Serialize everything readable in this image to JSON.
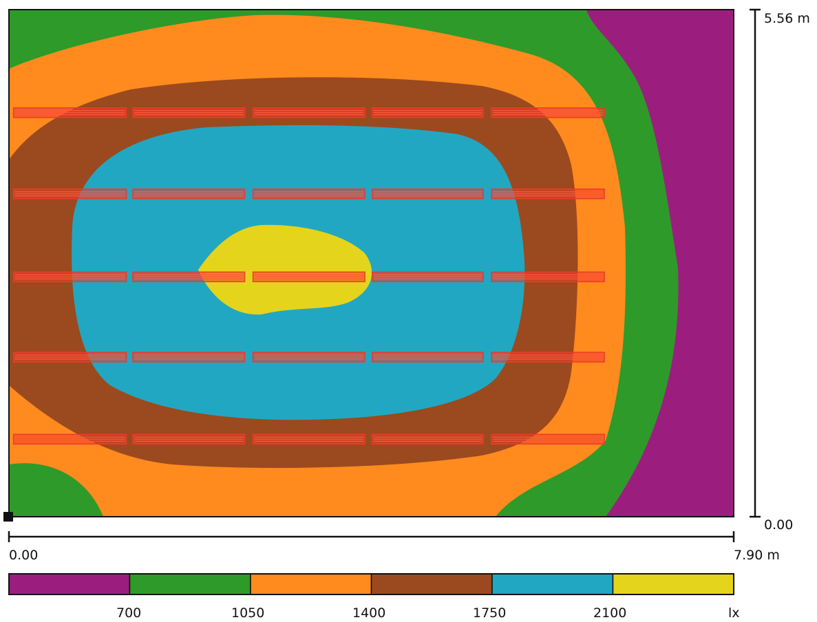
{
  "chart_data": {
    "type": "heatmap",
    "quantity_unit": "lx",
    "x_axis": {
      "min_label": "0.00",
      "max_label": "7.90 m",
      "range": [
        0,
        7.9
      ]
    },
    "y_axis": {
      "min_label": "0.00",
      "max_label": "5.56 m",
      "range": [
        0,
        5.56
      ]
    },
    "contour_levels": [
      700,
      1050,
      1400,
      1750,
      2100
    ],
    "legend": {
      "colors": [
        "#9b1e7e",
        "#2e9a2a",
        "#ff8a1e",
        "#9a4a1e",
        "#22a7c2",
        "#e5d41c"
      ],
      "tick_labels": [
        "700",
        "1050",
        "1400",
        "1750",
        "2100"
      ],
      "unit_label": "lx"
    },
    "luminaires": {
      "row_y_m": [
        4.43,
        3.54,
        2.63,
        1.75,
        0.85
      ],
      "segment_x_m": [
        [
          0.05,
          1.28
        ],
        [
          1.35,
          2.57
        ],
        [
          2.66,
          3.88
        ],
        [
          3.96,
          5.17
        ],
        [
          5.26,
          6.49
        ]
      ],
      "color": "#ee3a2a"
    }
  }
}
